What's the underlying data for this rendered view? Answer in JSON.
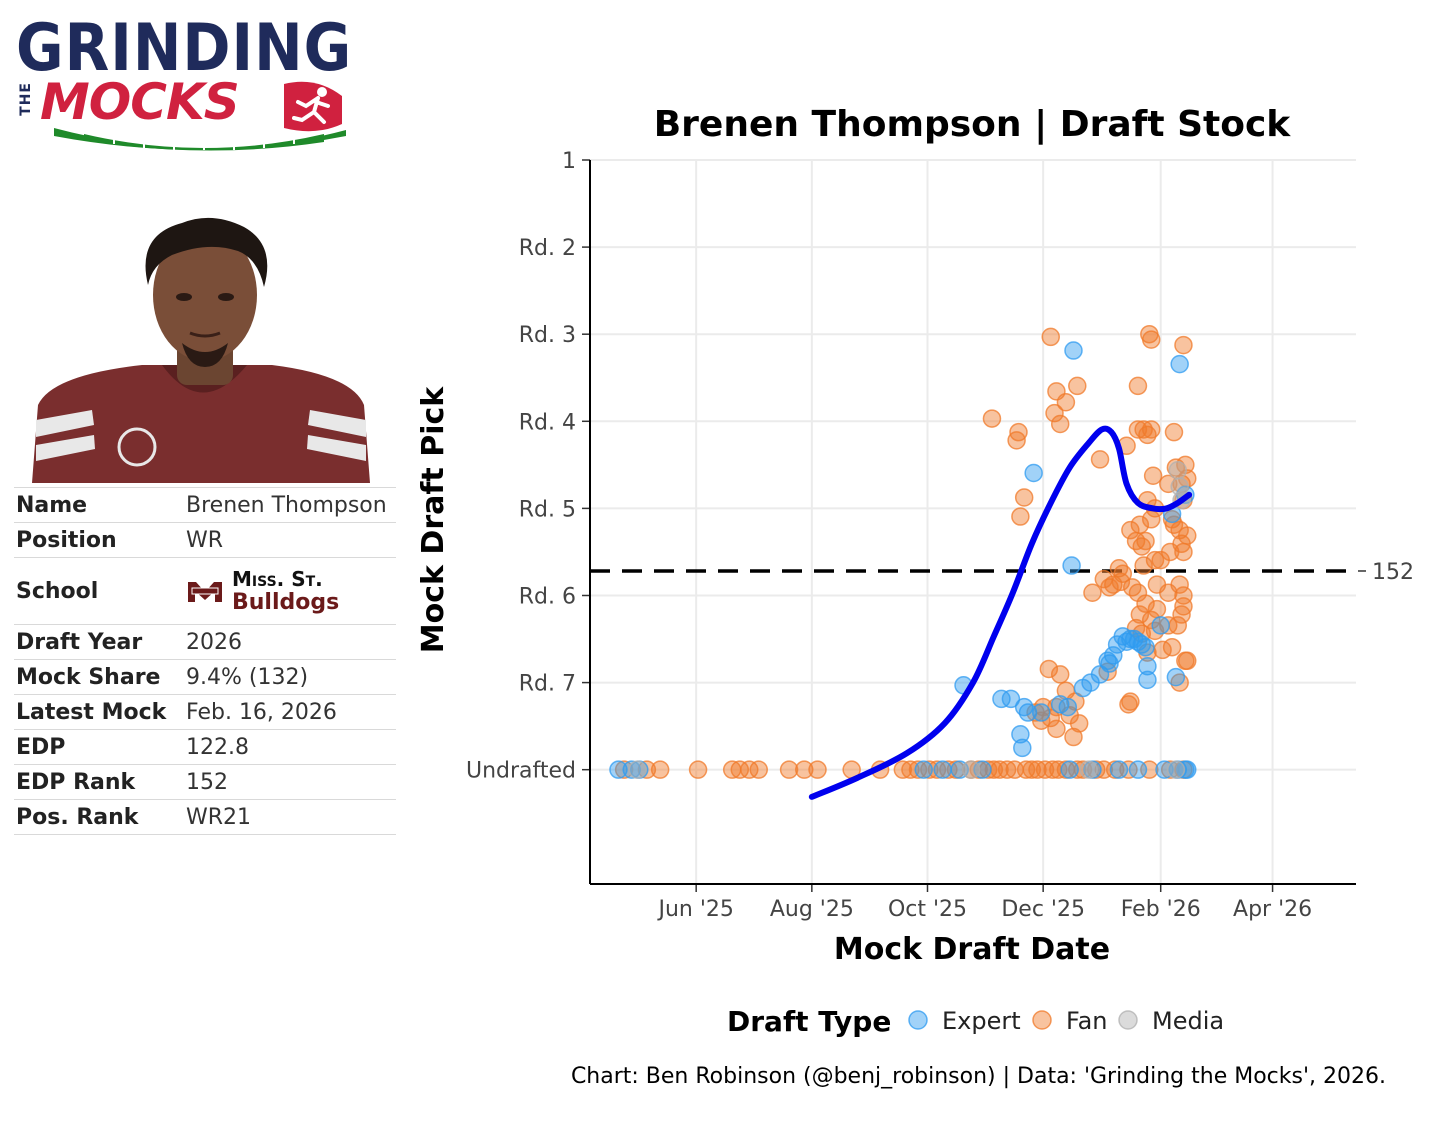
{
  "logo": {
    "line1": "GRINDING",
    "the": "THE",
    "line2": "MOCKS"
  },
  "profile": {
    "rows": [
      {
        "label": "Name",
        "value": "Brenen Thompson"
      },
      {
        "label": "Position",
        "value": "WR"
      },
      {
        "label": "School",
        "school_abbr": "Miss. St.",
        "school_mascot": "Bulldogs"
      },
      {
        "label": "Draft Year",
        "value": "2026"
      },
      {
        "label": "Mock Share",
        "value": "9.4% (132)"
      },
      {
        "label": "Latest Mock",
        "value": "Feb. 16, 2026"
      },
      {
        "label": "EDP",
        "value": "122.8"
      },
      {
        "label": "EDP Rank",
        "value": "152"
      },
      {
        "label": "Pos. Rank",
        "value": "WR21"
      }
    ]
  },
  "colors": {
    "expert": "#2f9bf0",
    "fan": "#f07a2a",
    "media": "#b0b0b0",
    "trend": "#0000ee",
    "school": "#6b1a1a"
  },
  "chart_data": {
    "type": "scatter",
    "title": "Brenen Thompson | Draft Stock",
    "xlabel": "Mock Draft Date",
    "ylabel": "Mock Draft Pick",
    "x_ticks": [
      {
        "date": "2025-06-01",
        "label": "Jun '25"
      },
      {
        "date": "2025-08-01",
        "label": "Aug '25"
      },
      {
        "date": "2025-10-01",
        "label": "Oct '25"
      },
      {
        "date": "2025-12-01",
        "label": "Dec '25"
      },
      {
        "date": "2026-02-01",
        "label": "Feb '26"
      },
      {
        "date": "2026-04-01",
        "label": "Apr '26"
      }
    ],
    "xlim": [
      "2025-04-06",
      "2026-05-15"
    ],
    "y_reversed": true,
    "ylim": [
      1,
      267
    ],
    "y_ticks": [
      {
        "value": 1,
        "label": "1"
      },
      {
        "value": 33,
        "label": "Rd. 2"
      },
      {
        "value": 65,
        "label": "Rd. 3"
      },
      {
        "value": 97,
        "label": "Rd. 4"
      },
      {
        "value": 129,
        "label": "Rd. 5"
      },
      {
        "value": 161,
        "label": "Rd. 6"
      },
      {
        "value": 193,
        "label": "Rd. 7"
      },
      {
        "value": 225,
        "label": "Undrafted"
      }
    ],
    "reference_line": {
      "value": 152,
      "label": "152"
    },
    "grid": true,
    "legend": {
      "title": "Draft Type",
      "position": "bottom",
      "entries": [
        {
          "name": "Expert",
          "color_key": "expert"
        },
        {
          "name": "Fan",
          "color_key": "fan"
        },
        {
          "name": "Media",
          "color_key": "media"
        }
      ]
    },
    "series": [
      {
        "name": "Expert",
        "points": [
          [
            "2025-04-21",
            225
          ],
          [
            "2025-04-28",
            225
          ],
          [
            "2025-05-02",
            225
          ],
          [
            "2025-09-29",
            225
          ],
          [
            "2025-10-09",
            225
          ],
          [
            "2025-10-18",
            225
          ],
          [
            "2025-10-30",
            225
          ],
          [
            "2025-12-15",
            225
          ],
          [
            "2025-12-27",
            225
          ],
          [
            "2026-01-10",
            225
          ],
          [
            "2026-01-20",
            225
          ],
          [
            "2026-02-03",
            225
          ],
          [
            "2026-02-10",
            225
          ],
          [
            "2026-02-15",
            225
          ],
          [
            "2026-02-14",
            225
          ],
          [
            "2025-10-20",
            194
          ],
          [
            "2025-11-09",
            199
          ],
          [
            "2025-11-14",
            199
          ],
          [
            "2025-11-19",
            212
          ],
          [
            "2025-11-21",
            202
          ],
          [
            "2025-11-23",
            204
          ],
          [
            "2025-11-30",
            204
          ],
          [
            "2025-11-20",
            217
          ],
          [
            "2025-12-10",
            201
          ],
          [
            "2025-12-14",
            202
          ],
          [
            "2025-12-22",
            195
          ],
          [
            "2025-12-26",
            193
          ],
          [
            "2025-12-31",
            190
          ],
          [
            "2026-01-04",
            185
          ],
          [
            "2026-01-07",
            183
          ],
          [
            "2026-01-09",
            179
          ],
          [
            "2026-01-12",
            176
          ],
          [
            "2026-01-14",
            178
          ],
          [
            "2026-01-16",
            177
          ],
          [
            "2026-01-18",
            177
          ],
          [
            "2026-01-20",
            178
          ],
          [
            "2026-01-22",
            179
          ],
          [
            "2026-01-24",
            180
          ],
          [
            "2026-01-25",
            187
          ],
          [
            "2026-02-01",
            172
          ],
          [
            "2026-02-09",
            191
          ],
          [
            "2025-11-26",
            116
          ],
          [
            "2025-12-16",
            150
          ],
          [
            "2025-12-17",
            71
          ],
          [
            "2026-02-11",
            76
          ],
          [
            "2026-02-14",
            124
          ],
          [
            "2026-02-07",
            131
          ],
          [
            "2026-01-25",
            192
          ],
          [
            "2026-01-05",
            186
          ]
        ]
      },
      {
        "name": "Fan",
        "points": [
          [
            "2025-04-24",
            225
          ],
          [
            "2025-05-06",
            225
          ],
          [
            "2025-05-13",
            225
          ],
          [
            "2025-06-02",
            225
          ],
          [
            "2025-06-20",
            225
          ],
          [
            "2025-06-24",
            225
          ],
          [
            "2025-06-29",
            225
          ],
          [
            "2025-07-04",
            225
          ],
          [
            "2025-07-20",
            225
          ],
          [
            "2025-07-28",
            225
          ],
          [
            "2025-08-04",
            225
          ],
          [
            "2025-08-22",
            225
          ],
          [
            "2025-09-06",
            225
          ],
          [
            "2025-09-18",
            225
          ],
          [
            "2025-09-22",
            225
          ],
          [
            "2025-09-26",
            225
          ],
          [
            "2025-10-02",
            225
          ],
          [
            "2025-10-06",
            225
          ],
          [
            "2025-10-12",
            225
          ],
          [
            "2025-10-16",
            225
          ],
          [
            "2025-10-24",
            225
          ],
          [
            "2025-10-28",
            225
          ],
          [
            "2025-11-02",
            225
          ],
          [
            "2025-11-05",
            225
          ],
          [
            "2025-11-08",
            225
          ],
          [
            "2025-11-12",
            225
          ],
          [
            "2025-11-16",
            225
          ],
          [
            "2025-11-22",
            225
          ],
          [
            "2025-11-25",
            225
          ],
          [
            "2025-11-28",
            225
          ],
          [
            "2025-12-02",
            225
          ],
          [
            "2025-12-06",
            225
          ],
          [
            "2025-12-09",
            225
          ],
          [
            "2025-12-13",
            225
          ],
          [
            "2025-12-19",
            225
          ],
          [
            "2025-12-22",
            225
          ],
          [
            "2025-12-29",
            225
          ],
          [
            "2026-01-02",
            225
          ],
          [
            "2026-01-08",
            225
          ],
          [
            "2026-01-15",
            225
          ],
          [
            "2026-01-26",
            225
          ],
          [
            "2026-02-06",
            225
          ],
          [
            "2026-02-13",
            225
          ],
          [
            "2025-12-05",
            66
          ],
          [
            "2026-01-26",
            65
          ],
          [
            "2026-01-27",
            67
          ],
          [
            "2026-02-13",
            69
          ],
          [
            "2025-12-19",
            84
          ],
          [
            "2025-12-08",
            86
          ],
          [
            "2025-12-13",
            90
          ],
          [
            "2025-12-07",
            94
          ],
          [
            "2026-01-20",
            84
          ],
          [
            "2025-11-04",
            96
          ],
          [
            "2025-12-10",
            98
          ],
          [
            "2026-01-23",
            100
          ],
          [
            "2026-01-27",
            100
          ],
          [
            "2026-02-08",
            101
          ],
          [
            "2026-01-25",
            102
          ],
          [
            "2026-01-20",
            100
          ],
          [
            "2025-11-18",
            101
          ],
          [
            "2026-01-14",
            106
          ],
          [
            "2025-11-17",
            104
          ],
          [
            "2026-02-14",
            113
          ],
          [
            "2025-12-31",
            111
          ],
          [
            "2026-02-09",
            114
          ],
          [
            "2026-02-15",
            118
          ],
          [
            "2026-02-05",
            120
          ],
          [
            "2026-02-12",
            120
          ],
          [
            "2026-01-28",
            117
          ],
          [
            "2025-11-21",
            125
          ],
          [
            "2025-11-19",
            132
          ],
          [
            "2026-01-25",
            126
          ],
          [
            "2026-02-13",
            126
          ],
          [
            "2026-01-29",
            129
          ],
          [
            "2026-02-07",
            133
          ],
          [
            "2026-02-08",
            135
          ],
          [
            "2026-01-21",
            135
          ],
          [
            "2026-01-27",
            133
          ],
          [
            "2026-01-16",
            137
          ],
          [
            "2026-02-11",
            137
          ],
          [
            "2026-02-15",
            139
          ],
          [
            "2026-02-12",
            142
          ],
          [
            "2026-01-19",
            141
          ],
          [
            "2026-01-22",
            143
          ],
          [
            "2026-01-24",
            141
          ],
          [
            "2026-02-13",
            145
          ],
          [
            "2026-01-23",
            150
          ],
          [
            "2026-01-29",
            148
          ],
          [
            "2026-02-06",
            145
          ],
          [
            "2026-02-01",
            148
          ],
          [
            "2026-01-10",
            151
          ],
          [
            "2026-01-12",
            153
          ],
          [
            "2026-01-02",
            155
          ],
          [
            "2026-01-11",
            156
          ],
          [
            "2026-01-07",
            157
          ],
          [
            "2026-01-05",
            158
          ],
          [
            "2026-02-11",
            157
          ],
          [
            "2026-02-13",
            161
          ],
          [
            "2026-01-30",
            157
          ],
          [
            "2026-02-05",
            160
          ],
          [
            "2025-12-27",
            160
          ],
          [
            "2026-01-17",
            158
          ],
          [
            "2026-01-20",
            160
          ],
          [
            "2026-01-24",
            164
          ],
          [
            "2026-01-30",
            166
          ],
          [
            "2026-02-13",
            165
          ],
          [
            "2026-01-21",
            168
          ],
          [
            "2026-01-27",
            170
          ],
          [
            "2026-02-05",
            172
          ],
          [
            "2026-02-10",
            172
          ],
          [
            "2026-02-12",
            168
          ],
          [
            "2026-01-29",
            174
          ],
          [
            "2026-01-19",
            173
          ],
          [
            "2026-01-22",
            175
          ],
          [
            "2026-02-07",
            180
          ],
          [
            "2026-02-14",
            185
          ],
          [
            "2025-12-04",
            188
          ],
          [
            "2025-12-10",
            190
          ],
          [
            "2025-12-13",
            196
          ],
          [
            "2026-01-16",
            200
          ],
          [
            "2026-02-15",
            185
          ],
          [
            "2025-12-08",
            202
          ],
          [
            "2025-11-27",
            204
          ],
          [
            "2025-12-01",
            202
          ],
          [
            "2025-11-30",
            207
          ],
          [
            "2025-12-05",
            206
          ],
          [
            "2025-12-15",
            205
          ],
          [
            "2025-12-08",
            210
          ],
          [
            "2025-12-18",
            200
          ],
          [
            "2026-01-04",
            189
          ],
          [
            "2025-12-17",
            213
          ],
          [
            "2025-12-20",
            208
          ],
          [
            "2026-01-15",
            201
          ],
          [
            "2026-01-25",
            182
          ],
          [
            "2026-02-02",
            181
          ],
          [
            "2026-02-11",
            193
          ]
        ]
      },
      {
        "name": "Media",
        "points": [
          [
            "2025-05-01",
            225
          ],
          [
            "2025-10-24",
            225
          ],
          [
            "2025-12-25",
            225
          ],
          [
            "2026-02-09",
            225
          ],
          [
            "2026-02-10",
            115
          ],
          [
            "2026-02-11",
            121
          ],
          [
            "2026-02-12",
            126
          ]
        ]
      }
    ],
    "trend": [
      [
        "2025-08-01",
        235
      ],
      [
        "2025-08-25",
        228
      ],
      [
        "2025-09-20",
        219
      ],
      [
        "2025-10-10",
        208
      ],
      [
        "2025-10-25",
        193
      ],
      [
        "2025-11-05",
        176
      ],
      [
        "2025-11-15",
        160
      ],
      [
        "2025-11-25",
        142
      ],
      [
        "2025-12-05",
        127
      ],
      [
        "2025-12-15",
        114
      ],
      [
        "2025-12-25",
        105
      ],
      [
        "2026-01-01",
        100
      ],
      [
        "2026-01-06",
        101
      ],
      [
        "2026-01-10",
        107
      ],
      [
        "2026-01-14",
        120
      ],
      [
        "2026-01-20",
        127
      ],
      [
        "2026-01-28",
        129
      ],
      [
        "2026-02-04",
        129
      ],
      [
        "2026-02-10",
        127
      ],
      [
        "2026-02-16",
        124
      ]
    ]
  },
  "caption": "Chart: Ben Robinson (@benj_robinson) | Data: 'Grinding the Mocks', 2026."
}
